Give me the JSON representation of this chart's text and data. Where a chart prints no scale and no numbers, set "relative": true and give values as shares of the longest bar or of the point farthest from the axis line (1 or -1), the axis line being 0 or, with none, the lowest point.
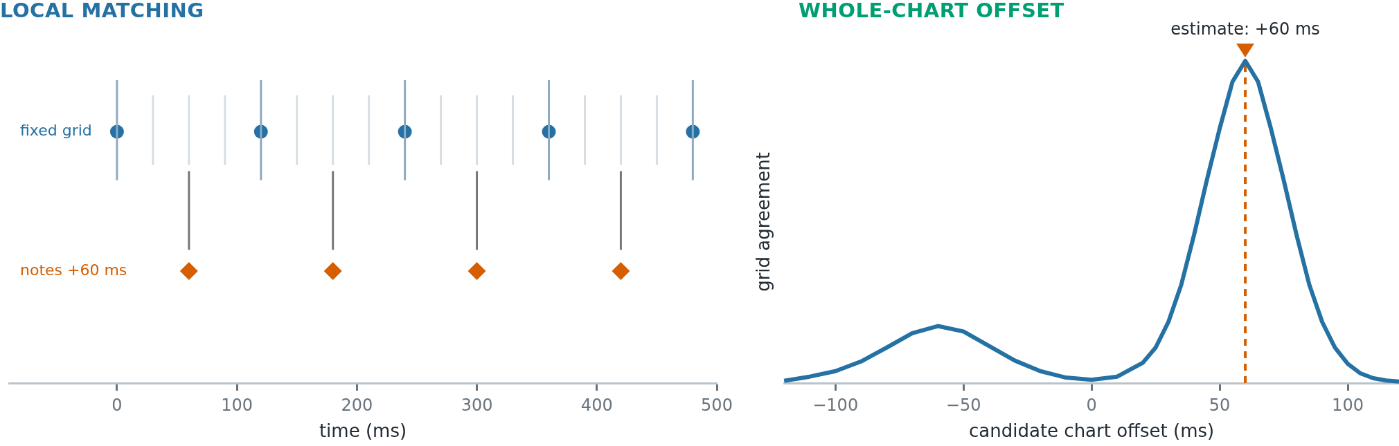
{
  "chart_data": [
    {
      "type": "scatter",
      "title": "LOCAL MATCHING",
      "xlabel": "time (ms)",
      "relative": true,
      "xlim": [
        -90,
        500
      ],
      "xticks": [
        0,
        100,
        200,
        300,
        400,
        500
      ],
      "grid": false,
      "legend": false,
      "series": [
        {
          "type": "line",
          "color": "#d6dee4",
          "x": [
            30,
            30
          ],
          "values": [
            0.72,
            0.95
          ]
        },
        {
          "type": "line",
          "color": "#d6dee4",
          "x": [
            60,
            60
          ],
          "values": [
            0.72,
            0.95
          ]
        },
        {
          "type": "line",
          "color": "#d6dee4",
          "x": [
            90,
            90
          ],
          "values": [
            0.72,
            0.95
          ]
        },
        {
          "type": "line",
          "color": "#d6dee4",
          "x": [
            150,
            150
          ],
          "values": [
            0.72,
            0.95
          ]
        },
        {
          "type": "line",
          "color": "#d6dee4",
          "x": [
            180,
            180
          ],
          "values": [
            0.72,
            0.95
          ]
        },
        {
          "type": "line",
          "color": "#d6dee4",
          "x": [
            210,
            210
          ],
          "values": [
            0.72,
            0.95
          ]
        },
        {
          "type": "line",
          "color": "#d6dee4",
          "x": [
            270,
            270
          ],
          "values": [
            0.72,
            0.95
          ]
        },
        {
          "type": "line",
          "color": "#d6dee4",
          "x": [
            300,
            300
          ],
          "values": [
            0.72,
            0.95
          ]
        },
        {
          "type": "line",
          "color": "#d6dee4",
          "x": [
            330,
            330
          ],
          "values": [
            0.72,
            0.95
          ]
        },
        {
          "type": "line",
          "color": "#d6dee4",
          "x": [
            390,
            390
          ],
          "values": [
            0.72,
            0.95
          ]
        },
        {
          "type": "line",
          "color": "#d6dee4",
          "x": [
            420,
            420
          ],
          "values": [
            0.72,
            0.95
          ]
        },
        {
          "type": "line",
          "color": "#d6dee4",
          "x": [
            450,
            450
          ],
          "values": [
            0.72,
            0.95
          ]
        },
        {
          "type": "line",
          "color": "#8eaac2",
          "x": [
            0,
            0
          ],
          "values": [
            0.67,
            1
          ]
        },
        {
          "type": "line",
          "color": "#8eaac2",
          "x": [
            120,
            120
          ],
          "values": [
            0.67,
            1
          ]
        },
        {
          "type": "line",
          "color": "#8eaac2",
          "x": [
            240,
            240
          ],
          "values": [
            0.67,
            1
          ]
        },
        {
          "type": "line",
          "color": "#8eaac2",
          "x": [
            360,
            360
          ],
          "values": [
            0.67,
            1
          ]
        },
        {
          "type": "line",
          "color": "#8eaac2",
          "x": [
            480,
            480
          ],
          "values": [
            0.67,
            1
          ]
        },
        {
          "type": "line",
          "color": "#777777",
          "x": [
            60,
            60
          ],
          "values": [
            0.44,
            0.7
          ]
        },
        {
          "type": "line",
          "color": "#777777",
          "x": [
            180,
            180
          ],
          "values": [
            0.44,
            0.7
          ]
        },
        {
          "type": "line",
          "color": "#777777",
          "x": [
            300,
            300
          ],
          "values": [
            0.44,
            0.7
          ]
        },
        {
          "type": "line",
          "color": "#777777",
          "x": [
            420,
            420
          ],
          "values": [
            0.44,
            0.7
          ]
        },
        {
          "name": "fixed grid",
          "marker": "circle",
          "color": "#2471a3",
          "x": [
            0,
            120,
            240,
            360,
            480
          ],
          "values": [
            0.83,
            0.83,
            0.83,
            0.83,
            0.83
          ]
        },
        {
          "name": "notes +60 ms",
          "marker": "diamond",
          "color": "#d55e00",
          "x": [
            60,
            180,
            300,
            420
          ],
          "values": [
            0.37,
            0.37,
            0.37,
            0.37
          ]
        }
      ]
    },
    {
      "type": "line",
      "title": "WHOLE-CHART OFFSET",
      "xlabel": "candidate chart offset (ms)",
      "ylabel": "grid agreement",
      "relative": true,
      "xlim": [
        -120,
        120
      ],
      "xticks": [
        {
          "value": -100,
          "label": "−100"
        },
        {
          "value": -50,
          "label": "−50"
        },
        0,
        50,
        100
      ],
      "grid": false,
      "legend": false,
      "marker": "none",
      "x": [
        -120,
        -110,
        -100,
        -90,
        -80,
        -70,
        -60,
        -50,
        -40,
        -30,
        -20,
        -10,
        0,
        10,
        20,
        25,
        30,
        35,
        40,
        45,
        50,
        55,
        60,
        65,
        70,
        75,
        80,
        85,
        90,
        95,
        100,
        105,
        110,
        115,
        120
      ],
      "series": [
        {
          "color": "#2471a3",
          "values": [
            0.007,
            0.02,
            0.037,
            0.067,
            0.11,
            0.155,
            0.177,
            0.16,
            0.115,
            0.07,
            0.037,
            0.017,
            0.01,
            0.02,
            0.063,
            0.11,
            0.19,
            0.305,
            0.46,
            0.63,
            0.79,
            0.935,
            1,
            0.935,
            0.79,
            0.63,
            0.46,
            0.305,
            0.19,
            0.11,
            0.06,
            0.03,
            0.015,
            0.008,
            0.005
          ]
        }
      ],
      "ref_lines": [
        {
          "axis": "x",
          "value": 60,
          "label": "estimate: +60 ms",
          "color": "#d55e00",
          "line_style": "dashed"
        }
      ]
    }
  ]
}
